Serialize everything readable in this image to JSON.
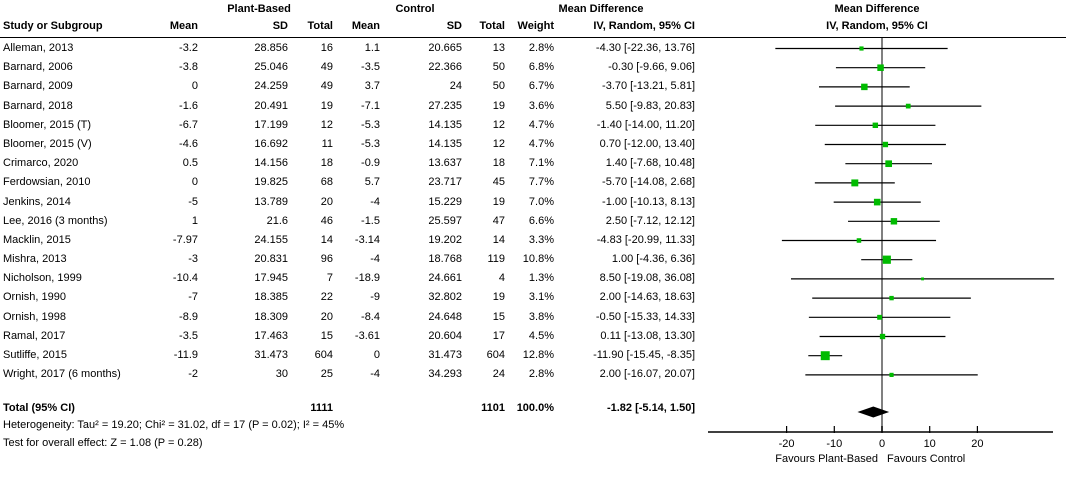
{
  "table": {
    "group_headers": {
      "plant": "Plant-Based",
      "control": "Control"
    },
    "columns": {
      "study": "Study or Subgroup",
      "mean": "Mean",
      "sd": "SD",
      "total": "Total",
      "weight": "Weight",
      "md_line1": "Mean Difference",
      "md_line2": "IV, Random, 95% CI"
    },
    "total_row": {
      "label": "Total (95% CI)",
      "p_total": "1111",
      "c_total": "1101",
      "weight": "100.0%",
      "ci": "-1.82 [-5.14, 1.50]"
    },
    "footer": {
      "heterogeneity": "Heterogeneity: Tau² = 19.20; Chi² = 31.02, df = 17 (P = 0.02); I² = 45%",
      "overall_effect": "Test for overall effect: Z = 1.08 (P = 0.28)"
    }
  },
  "chart_data": {
    "type": "forest",
    "title": "Mean Difference",
    "subtitle": "IV, Random, 95% CI",
    "x_ticks": [
      -20,
      -10,
      0,
      10,
      20
    ],
    "x_range": [
      -36.5,
      36.1
    ],
    "zero_line": 0,
    "favours_left": "Favours Plant-Based",
    "favours_right": "Favours Control",
    "marker_color": "#00bb00",
    "ci_color": "#000000",
    "diamond_color": "#000000",
    "zero_line_color": "#808080",
    "studies": [
      {
        "name": "Alleman, 2013",
        "p_mean": "-3.2",
        "p_sd": "28.856",
        "p_total": "16",
        "c_mean": "1.1",
        "c_sd": "20.665",
        "c_total": "13",
        "weight": "2.8%",
        "ci": "-4.30 [-22.36, 13.76]",
        "md": -4.3,
        "lo": -22.36,
        "hi": 13.76,
        "w": 2.8
      },
      {
        "name": "Barnard, 2006",
        "p_mean": "-3.8",
        "p_sd": "25.046",
        "p_total": "49",
        "c_mean": "-3.5",
        "c_sd": "22.366",
        "c_total": "50",
        "weight": "6.8%",
        "ci": "-0.30 [-9.66, 9.06]",
        "md": -0.3,
        "lo": -9.66,
        "hi": 9.06,
        "w": 6.8
      },
      {
        "name": "Barnard, 2009",
        "p_mean": "0",
        "p_sd": "24.259",
        "p_total": "49",
        "c_mean": "3.7",
        "c_sd": "24",
        "c_total": "50",
        "weight": "6.7%",
        "ci": "-3.70 [-13.21, 5.81]",
        "md": -3.7,
        "lo": -13.21,
        "hi": 5.81,
        "w": 6.7
      },
      {
        "name": "Barnard, 2018",
        "p_mean": "-1.6",
        "p_sd": "20.491",
        "p_total": "19",
        "c_mean": "-7.1",
        "c_sd": "27.235",
        "c_total": "19",
        "weight": "3.6%",
        "ci": "5.50 [-9.83, 20.83]",
        "md": 5.5,
        "lo": -9.83,
        "hi": 20.83,
        "w": 3.6
      },
      {
        "name": "Bloomer, 2015 (T)",
        "p_mean": "-6.7",
        "p_sd": "17.199",
        "p_total": "12",
        "c_mean": "-5.3",
        "c_sd": "14.135",
        "c_total": "12",
        "weight": "4.7%",
        "ci": "-1.40 [-14.00, 11.20]",
        "md": -1.4,
        "lo": -14.0,
        "hi": 11.2,
        "w": 4.7
      },
      {
        "name": "Bloomer, 2015 (V)",
        "p_mean": "-4.6",
        "p_sd": "16.692",
        "p_total": "11",
        "c_mean": "-5.3",
        "c_sd": "14.135",
        "c_total": "12",
        "weight": "4.7%",
        "ci": "0.70 [-12.00, 13.40]",
        "md": 0.7,
        "lo": -12.0,
        "hi": 13.4,
        "w": 4.7
      },
      {
        "name": "Crimarco, 2020",
        "p_mean": "0.5",
        "p_sd": "14.156",
        "p_total": "18",
        "c_mean": "-0.9",
        "c_sd": "13.637",
        "c_total": "18",
        "weight": "7.1%",
        "ci": "1.40 [-7.68, 10.48]",
        "md": 1.4,
        "lo": -7.68,
        "hi": 10.48,
        "w": 7.1
      },
      {
        "name": "Ferdowsian, 2010",
        "p_mean": "0",
        "p_sd": "19.825",
        "p_total": "68",
        "c_mean": "5.7",
        "c_sd": "23.717",
        "c_total": "45",
        "weight": "7.7%",
        "ci": "-5.70 [-14.08, 2.68]",
        "md": -5.7,
        "lo": -14.08,
        "hi": 2.68,
        "w": 7.7
      },
      {
        "name": "Jenkins, 2014",
        "p_mean": "-5",
        "p_sd": "13.789",
        "p_total": "20",
        "c_mean": "-4",
        "c_sd": "15.229",
        "c_total": "19",
        "weight": "7.0%",
        "ci": "-1.00 [-10.13, 8.13]",
        "md": -1.0,
        "lo": -10.13,
        "hi": 8.13,
        "w": 7.0
      },
      {
        "name": "Lee, 2016 (3 months)",
        "p_mean": "1",
        "p_sd": "21.6",
        "p_total": "46",
        "c_mean": "-1.5",
        "c_sd": "25.597",
        "c_total": "47",
        "weight": "6.6%",
        "ci": "2.50 [-7.12, 12.12]",
        "md": 2.5,
        "lo": -7.12,
        "hi": 12.12,
        "w": 6.6
      },
      {
        "name": "Macklin, 2015",
        "p_mean": "-7.97",
        "p_sd": "24.155",
        "p_total": "14",
        "c_mean": "-3.14",
        "c_sd": "19.202",
        "c_total": "14",
        "weight": "3.3%",
        "ci": "-4.83 [-20.99, 11.33]",
        "md": -4.83,
        "lo": -20.99,
        "hi": 11.33,
        "w": 3.3
      },
      {
        "name": "Mishra, 2013",
        "p_mean": "-3",
        "p_sd": "20.831",
        "p_total": "96",
        "c_mean": "-4",
        "c_sd": "18.768",
        "c_total": "119",
        "weight": "10.8%",
        "ci": "1.00 [-4.36, 6.36]",
        "md": 1.0,
        "lo": -4.36,
        "hi": 6.36,
        "w": 10.8
      },
      {
        "name": "Nicholson, 1999",
        "p_mean": "-10.4",
        "p_sd": "17.945",
        "p_total": "7",
        "c_mean": "-18.9",
        "c_sd": "24.661",
        "c_total": "4",
        "weight": "1.3%",
        "ci": "8.50 [-19.08, 36.08]",
        "md": 8.5,
        "lo": -19.08,
        "hi": 36.08,
        "w": 1.3
      },
      {
        "name": "Ornish, 1990",
        "p_mean": "-7",
        "p_sd": "18.385",
        "p_total": "22",
        "c_mean": "-9",
        "c_sd": "32.802",
        "c_total": "19",
        "weight": "3.1%",
        "ci": "2.00 [-14.63, 18.63]",
        "md": 2.0,
        "lo": -14.63,
        "hi": 18.63,
        "w": 3.1
      },
      {
        "name": "Ornish, 1998",
        "p_mean": "-8.9",
        "p_sd": "18.309",
        "p_total": "20",
        "c_mean": "-8.4",
        "c_sd": "24.648",
        "c_total": "15",
        "weight": "3.8%",
        "ci": "-0.50 [-15.33, 14.33]",
        "md": -0.5,
        "lo": -15.33,
        "hi": 14.33,
        "w": 3.8
      },
      {
        "name": "Ramal, 2017",
        "p_mean": "-3.5",
        "p_sd": "17.463",
        "p_total": "15",
        "c_mean": "-3.61",
        "c_sd": "20.604",
        "c_total": "17",
        "weight": "4.5%",
        "ci": "0.11 [-13.08, 13.30]",
        "md": 0.11,
        "lo": -13.08,
        "hi": 13.3,
        "w": 4.5
      },
      {
        "name": "Sutliffe, 2015",
        "p_mean": "-11.9",
        "p_sd": "31.473",
        "p_total": "604",
        "c_mean": "0",
        "c_sd": "31.473",
        "c_total": "604",
        "weight": "12.8%",
        "ci": "-11.90 [-15.45, -8.35]",
        "md": -11.9,
        "lo": -15.45,
        "hi": -8.35,
        "w": 12.8
      },
      {
        "name": "Wright, 2017 (6 months)",
        "p_mean": "-2",
        "p_sd": "30",
        "p_total": "25",
        "c_mean": "-4",
        "c_sd": "34.293",
        "c_total": "24",
        "weight": "2.8%",
        "ci": "2.00 [-16.07, 20.07]",
        "md": 2.0,
        "lo": -16.07,
        "hi": 20.07,
        "w": 2.8
      }
    ],
    "total": {
      "md": -1.82,
      "lo": -5.14,
      "hi": 1.5
    }
  }
}
